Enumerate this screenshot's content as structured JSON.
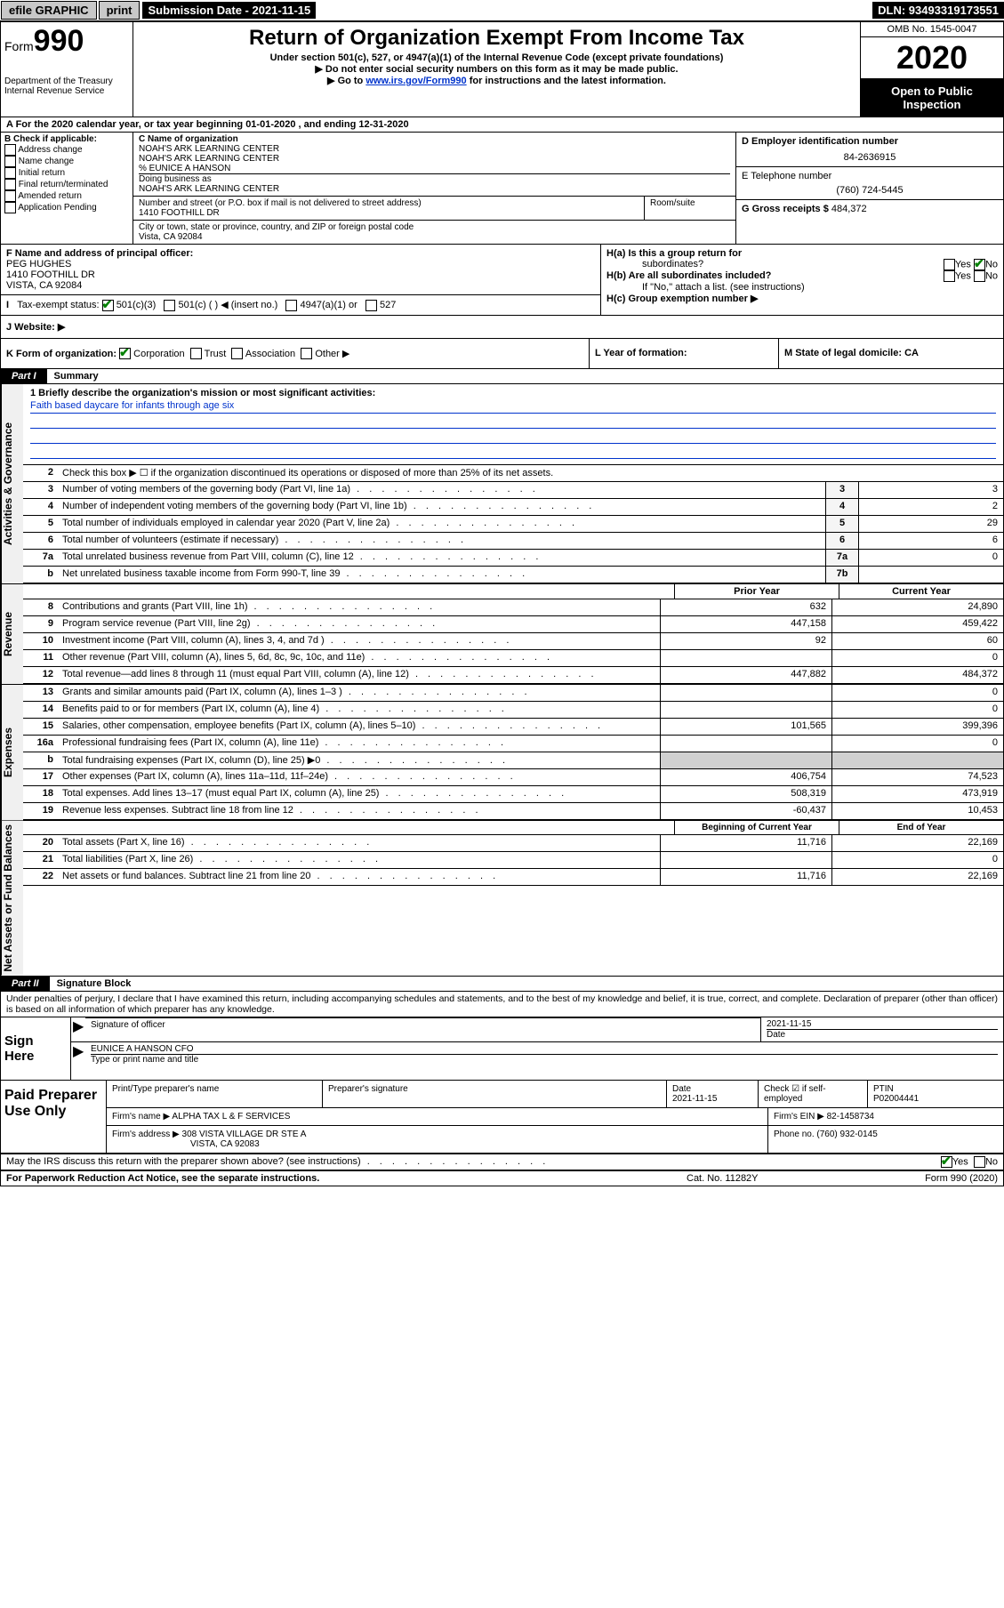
{
  "topbar": {
    "efile": "efile GRAPHIC",
    "print": "print",
    "sub_date_label": "Submission Date - 2021-11-15",
    "dln": "DLN: 93493319173551"
  },
  "header": {
    "form_label": "Form",
    "form_no": "990",
    "dept": "Department of the Treasury",
    "irs": "Internal Revenue Service",
    "title": "Return of Organization Exempt From Income Tax",
    "sub1": "Under section 501(c), 527, or 4947(a)(1) of the Internal Revenue Code (except private foundations)",
    "sub2": "▶ Do not enter social security numbers on this form as it may be made public.",
    "sub3_pre": "▶ Go to ",
    "sub3_link": "www.irs.gov/Form990",
    "sub3_post": " for instructions and the latest information.",
    "omb": "OMB No. 1545-0047",
    "year": "2020",
    "open": "Open to Public Inspection"
  },
  "rowA": "A For the 2020 calendar year, or tax year beginning 01-01-2020    , and ending 12-31-2020",
  "boxB": {
    "label": "B Check if applicable:",
    "opts": [
      "Address change",
      "Name change",
      "Initial return",
      "Final return/terminated",
      "Amended return",
      "Application Pending"
    ]
  },
  "boxC": {
    "name_label": "C Name of organization",
    "name1": "NOAH'S ARK LEARNING CENTER",
    "name2": "NOAH'S ARK LEARNING CENTER",
    "co": "% EUNICE A HANSON",
    "dba_label": "Doing business as",
    "dba": "NOAH'S ARK LEARNING CENTER",
    "street_label": "Number and street (or P.O. box if mail is not delivered to street address)",
    "street": "1410 FOOTHILL DR",
    "room_label": "Room/suite",
    "city_label": "City or town, state or province, country, and ZIP or foreign postal code",
    "city": "Vista, CA  92084"
  },
  "boxD": {
    "label": "D Employer identification number",
    "val": "84-2636915"
  },
  "boxE": {
    "label": "E Telephone number",
    "val": "(760) 724-5445"
  },
  "boxG": {
    "label": "G Gross receipts $",
    "val": "484,372"
  },
  "boxF": {
    "label": "F  Name and address of principal officer:",
    "name": "PEG HUGHES",
    "addr1": "1410 FOOTHILL DR",
    "addr2": "VISTA, CA  92084"
  },
  "boxH": {
    "a": "H(a)  Is this a group return for",
    "a2": "subordinates?",
    "b": "H(b)  Are all subordinates included?",
    "note": "If \"No,\" attach a list. (see instructions)",
    "c": "H(c)  Group exemption number ▶",
    "yes": "Yes",
    "no": "No"
  },
  "rowI": {
    "label": "Tax-exempt status:",
    "opts": [
      "501(c)(3)",
      "501(c) (  ) ◀ (insert no.)",
      "4947(a)(1) or",
      "527"
    ]
  },
  "rowJ": "J   Website: ▶",
  "rowK": "K Form of organization:",
  "rowK_opts": [
    "Corporation",
    "Trust",
    "Association",
    "Other ▶"
  ],
  "rowL": "L Year of formation:",
  "rowM": "M State of legal domicile: CA",
  "part1": {
    "label": "Part I",
    "title": "Summary"
  },
  "vert": {
    "gov": "Activities & Governance",
    "rev": "Revenue",
    "exp": "Expenses",
    "net": "Net Assets or Fund Balances"
  },
  "mission": {
    "q": "1  Briefly describe the organization's mission or most significant activities:",
    "a": "Faith based daycare for infants through age six"
  },
  "gov_lines": [
    {
      "n": "2",
      "d": "Check this box ▶ ☐  if the organization discontinued its operations or disposed of more than 25% of its net assets.",
      "box": "",
      "val": ""
    },
    {
      "n": "3",
      "d": "Number of voting members of the governing body (Part VI, line 1a)",
      "box": "3",
      "val": "3"
    },
    {
      "n": "4",
      "d": "Number of independent voting members of the governing body (Part VI, line 1b)",
      "box": "4",
      "val": "2"
    },
    {
      "n": "5",
      "d": "Total number of individuals employed in calendar year 2020 (Part V, line 2a)",
      "box": "5",
      "val": "29"
    },
    {
      "n": "6",
      "d": "Total number of volunteers (estimate if necessary)",
      "box": "6",
      "val": "6"
    },
    {
      "n": "7a",
      "d": "Total unrelated business revenue from Part VIII, column (C), line 12",
      "box": "7a",
      "val": "0"
    },
    {
      "n": "b",
      "d": "Net unrelated business taxable income from Form 990-T, line 39",
      "box": "7b",
      "val": ""
    }
  ],
  "rev_header": {
    "py": "Prior Year",
    "cy": "Current Year"
  },
  "rev_lines": [
    {
      "n": "8",
      "d": "Contributions and grants (Part VIII, line 1h)",
      "py": "632",
      "cy": "24,890"
    },
    {
      "n": "9",
      "d": "Program service revenue (Part VIII, line 2g)",
      "py": "447,158",
      "cy": "459,422"
    },
    {
      "n": "10",
      "d": "Investment income (Part VIII, column (A), lines 3, 4, and 7d )",
      "py": "92",
      "cy": "60"
    },
    {
      "n": "11",
      "d": "Other revenue (Part VIII, column (A), lines 5, 6d, 8c, 9c, 10c, and 11e)",
      "py": "",
      "cy": "0"
    },
    {
      "n": "12",
      "d": "Total revenue—add lines 8 through 11 (must equal Part VIII, column (A), line 12)",
      "py": "447,882",
      "cy": "484,372"
    }
  ],
  "exp_lines": [
    {
      "n": "13",
      "d": "Grants and similar amounts paid (Part IX, column (A), lines 1–3 )",
      "py": "",
      "cy": "0"
    },
    {
      "n": "14",
      "d": "Benefits paid to or for members (Part IX, column (A), line 4)",
      "py": "",
      "cy": "0"
    },
    {
      "n": "15",
      "d": "Salaries, other compensation, employee benefits (Part IX, column (A), lines 5–10)",
      "py": "101,565",
      "cy": "399,396"
    },
    {
      "n": "16a",
      "d": "Professional fundraising fees (Part IX, column (A), line 11e)",
      "py": "",
      "cy": "0"
    },
    {
      "n": "b",
      "d": "Total fundraising expenses (Part IX, column (D), line 25) ▶0",
      "py": "—",
      "cy": "—"
    },
    {
      "n": "17",
      "d": "Other expenses (Part IX, column (A), lines 11a–11d, 11f–24e)",
      "py": "406,754",
      "cy": "74,523"
    },
    {
      "n": "18",
      "d": "Total expenses. Add lines 13–17 (must equal Part IX, column (A), line 25)",
      "py": "508,319",
      "cy": "473,919"
    },
    {
      "n": "19",
      "d": "Revenue less expenses. Subtract line 18 from line 12",
      "py": "-60,437",
      "cy": "10,453"
    }
  ],
  "net_header": {
    "py": "Beginning of Current Year",
    "cy": "End of Year"
  },
  "net_lines": [
    {
      "n": "20",
      "d": "Total assets (Part X, line 16)",
      "py": "11,716",
      "cy": "22,169"
    },
    {
      "n": "21",
      "d": "Total liabilities (Part X, line 26)",
      "py": "",
      "cy": "0"
    },
    {
      "n": "22",
      "d": "Net assets or fund balances. Subtract line 21 from line 20",
      "py": "11,716",
      "cy": "22,169"
    }
  ],
  "part2": {
    "label": "Part II",
    "title": "Signature Block"
  },
  "penalties": "Under penalties of perjury, I declare that I have examined this return, including accompanying schedules and statements, and to the best of my knowledge and belief, it is true, correct, and complete. Declaration of preparer (other than officer) is based on all information of which preparer has any knowledge.",
  "sign": {
    "label": "Sign Here",
    "sig_of": "Signature of officer",
    "date": "2021-11-15",
    "date_label": "Date",
    "name": "EUNICE A HANSON  CFO",
    "name_label": "Type or print name and title"
  },
  "prep": {
    "label": "Paid Preparer Use Only",
    "h_name": "Print/Type preparer's name",
    "h_sig": "Preparer's signature",
    "h_date": "Date",
    "date": "2021-11-15",
    "h_check": "Check ☑ if self-employed",
    "h_ptin": "PTIN",
    "ptin": "P02004441",
    "firm_name_l": "Firm's name    ▶",
    "firm_name": "ALPHA TAX L & F SERVICES",
    "firm_ein_l": "Firm's EIN ▶",
    "firm_ein": "82-1458734",
    "firm_addr_l": "Firm's address ▶",
    "firm_addr1": "308 VISTA VILLAGE DR STE A",
    "firm_addr2": "VISTA, CA  92083",
    "phone_l": "Phone no.",
    "phone": "(760) 932-0145"
  },
  "discuss": "May the IRS discuss this return with the preparer shown above? (see instructions)",
  "footer": {
    "left": "For Paperwork Reduction Act Notice, see the separate instructions.",
    "mid": "Cat. No. 11282Y",
    "right": "Form 990 (2020)"
  }
}
